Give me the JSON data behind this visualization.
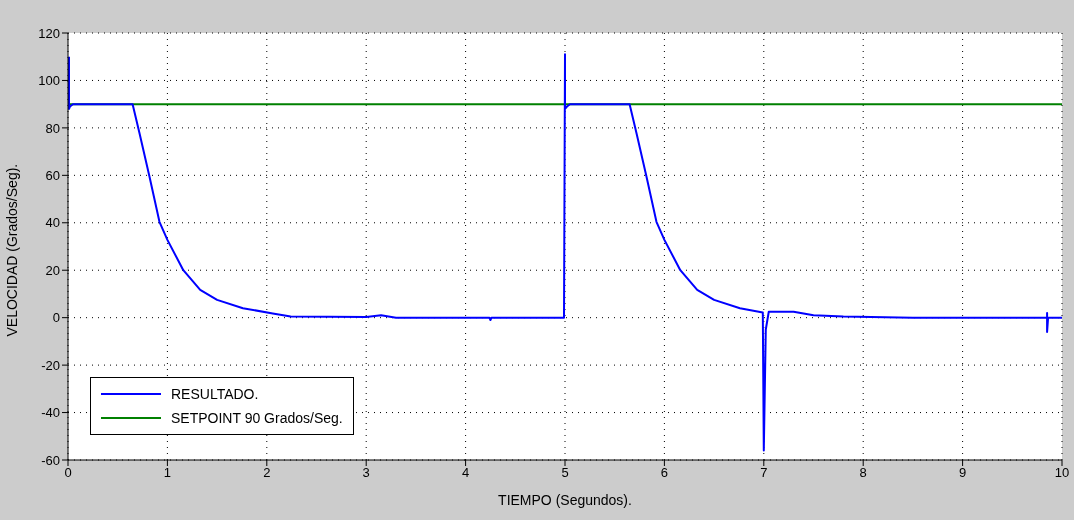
{
  "chart_data": {
    "type": "line",
    "xlabel": "TIEMPO (Segundos).",
    "ylabel": "VELOCIDAD (Grados/Seg).",
    "xlim": [
      0,
      10
    ],
    "xticks": [
      0,
      1,
      2,
      3,
      4,
      5,
      6,
      7,
      8,
      9,
      10
    ],
    "ylim": [
      -60,
      120
    ],
    "yticks": [
      -60,
      -40,
      -20,
      0,
      20,
      40,
      60,
      80,
      100,
      120
    ],
    "grid": true,
    "legend": "bottom left",
    "line_style": "solid",
    "marker": "none",
    "series": [
      {
        "name": "RESULTADO.",
        "color": "#0000ff",
        "x": [
          0.01,
          0.01,
          0.02,
          0.05,
          0.65,
          0.72,
          0.82,
          0.92,
          1.0,
          1.16,
          1.33,
          1.5,
          1.76,
          2.06,
          2.24,
          3.0,
          3.15,
          3.3,
          4.24,
          4.25,
          4.26,
          4.99,
          5.0,
          5.0,
          5.02,
          5.05,
          5.65,
          5.72,
          5.82,
          5.92,
          6.0,
          6.16,
          6.33,
          6.5,
          6.76,
          6.99,
          7.0,
          7.02,
          7.05,
          7.3,
          7.5,
          7.8,
          8.5,
          9.85,
          9.85,
          9.85,
          9.86,
          10
        ],
        "values": [
          110,
          88,
          89,
          90,
          90,
          77.6,
          59.4,
          40.4,
          32.8,
          20,
          11.7,
          7.5,
          4,
          1.8,
          0.5,
          0.3,
          1,
          0,
          0,
          -1,
          0,
          0,
          111,
          88,
          89,
          90,
          90,
          77.6,
          59.4,
          40.4,
          32.8,
          20,
          11.7,
          7.5,
          4,
          2.2,
          -56,
          -5,
          2.5,
          2.5,
          1,
          0.5,
          0,
          0,
          2,
          -6,
          0,
          0
        ]
      },
      {
        "name": "SETPOINT 90 Grados/Seg.",
        "color": "#008000",
        "x": [
          0,
          10
        ],
        "values": [
          90,
          90
        ]
      }
    ]
  }
}
